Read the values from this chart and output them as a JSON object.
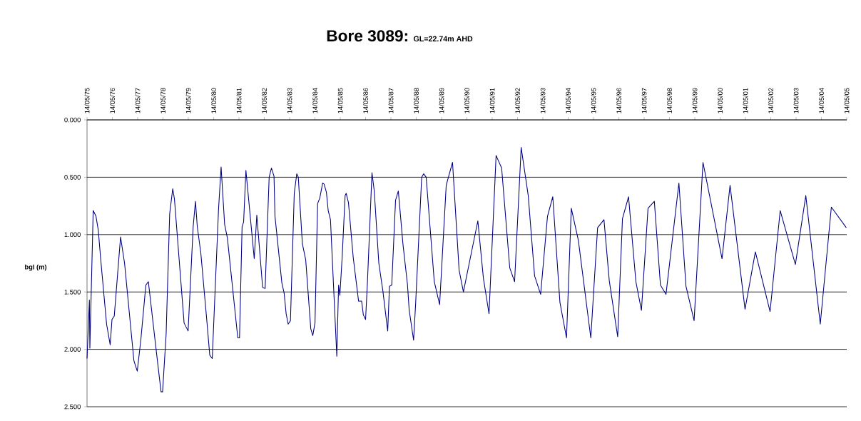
{
  "chart_data": {
    "type": "line",
    "title": "Bore 3089:",
    "subtitle": "GL=22.74m AHD",
    "ylabel": "bgl (m)",
    "x": [
      "1975-05-14",
      "1975-06-17",
      "1975-06-24",
      "1975-08-11",
      "1975-09-20",
      "1975-10-23",
      "1975-11-28",
      "1976-02-20",
      "1976-04-12",
      "1976-05-08",
      "1976-06-10",
      "1976-09-09",
      "1976-11-06",
      "1977-03-21",
      "1977-05-08",
      "1977-06-28",
      "1977-09-09",
      "1977-10-15",
      "1978-02-13",
      "1978-04-16",
      "1978-05-08",
      "1978-06-28",
      "1978-08-18",
      "1978-10-01",
      "1978-10-26",
      "1979-03-14",
      "1979-05-11",
      "1979-07-23",
      "1979-08-25",
      "1979-09-20",
      "1979-11-10",
      "1980-02-02",
      "1980-03-18",
      "1980-04-23",
      "1980-07-23",
      "1980-08-29",
      "1980-10-19",
      "1980-11-28",
      "1981-04-27",
      "1981-05-22",
      "1981-06-28",
      "1981-07-20",
      "1981-08-22",
      "1981-12-20",
      "1982-01-26",
      "1982-04-20",
      "1982-05-26",
      "1982-07-23",
      "1982-08-25",
      "1982-10-01",
      "1982-10-15",
      "1983-01-22",
      "1983-02-24",
      "1983-03-25",
      "1983-04-23",
      "1983-05-26",
      "1983-07-20",
      "1983-08-25",
      "1983-09-16",
      "1983-11-14",
      "1984-01-01",
      "1984-03-14",
      "1984-04-12",
      "1984-05-14",
      "1984-06-21",
      "1984-07-23",
      "1984-09-02",
      "1984-09-23",
      "1984-10-26",
      "1984-11-21",
      "1984-12-24",
      "1985-03-25",
      "1985-04-20",
      "1985-05-08",
      "1985-06-10",
      "1985-07-23",
      "1985-08-07",
      "1985-09-09",
      "1985-11-17",
      "1986-02-02",
      "1986-03-18",
      "1986-04-12",
      "1986-05-14",
      "1986-06-10",
      "1986-08-14",
      "1986-09-16",
      "1986-11-21",
      "1987-01-18",
      "1987-03-29",
      "1987-04-23",
      "1987-05-26",
      "1987-07-20",
      "1987-08-29",
      "1987-09-27",
      "1987-11-03",
      "1988-01-07",
      "1988-02-02",
      "1988-04-05",
      "1988-05-04",
      "1988-07-31",
      "1988-08-29",
      "1988-10-04",
      "1989-01-29",
      "1989-04-16",
      "1989-07-20",
      "1989-10-19",
      "1990-01-22",
      "1990-03-25",
      "1990-10-19",
      "1991-01-07",
      "1991-03-29",
      "1991-07-09",
      "1991-09-27",
      "1992-01-22",
      "1992-04-01",
      "1992-07-05",
      "1992-10-15",
      "1993-01-15",
      "1993-04-12",
      "1993-07-20",
      "1993-10-04",
      "1994-01-15",
      "1994-04-20",
      "1994-06-28",
      "1994-10-08",
      "1995-04-05",
      "1995-07-12",
      "1995-10-12",
      "1995-12-27",
      "1996-04-27",
      "1996-07-05",
      "1996-10-01",
      "1997-01-15",
      "1997-04-05",
      "1997-07-09",
      "1997-10-08",
      "1998-01-04",
      "1998-03-25",
      "1998-09-27",
      "1999-01-07",
      "1999-05-04",
      "1999-09-09",
      "2000-06-10",
      "2000-10-04",
      "2001-05-08",
      "2001-10-04",
      "2002-05-04",
      "2002-09-27",
      "2003-05-04",
      "2003-10-01",
      "2004-04-27",
      "2004-10-04",
      "2005-05-08"
    ],
    "series": [
      {
        "color": "#000080",
        "values": [
          2.08,
          1.57,
          1.99,
          0.79,
          0.84,
          0.96,
          1.22,
          1.78,
          1.96,
          1.74,
          1.71,
          1.02,
          1.25,
          2.1,
          2.19,
          1.92,
          1.44,
          1.41,
          2.05,
          2.37,
          2.37,
          1.87,
          0.82,
          0.6,
          0.69,
          1.77,
          1.84,
          0.93,
          0.71,
          0.93,
          1.16,
          1.73,
          2.05,
          2.08,
          0.78,
          0.41,
          0.91,
          1.03,
          1.9,
          1.9,
          0.93,
          0.89,
          0.44,
          1.21,
          0.83,
          1.46,
          1.47,
          0.5,
          0.42,
          0.49,
          0.84,
          1.42,
          1.51,
          1.69,
          1.78,
          1.75,
          0.64,
          0.47,
          0.5,
          1.08,
          1.22,
          1.82,
          1.88,
          1.77,
          0.73,
          0.68,
          0.55,
          0.56,
          0.63,
          0.79,
          0.87,
          2.06,
          1.44,
          1.53,
          1.2,
          0.66,
          0.64,
          0.72,
          1.2,
          1.58,
          1.58,
          1.7,
          1.74,
          1.41,
          0.46,
          0.62,
          1.25,
          1.49,
          1.84,
          1.45,
          1.44,
          0.7,
          0.62,
          0.82,
          1.08,
          1.43,
          1.66,
          1.92,
          1.61,
          0.5,
          0.47,
          0.5,
          1.41,
          1.61,
          0.57,
          0.37,
          1.31,
          1.5,
          0.88,
          1.38,
          1.69,
          0.31,
          0.42,
          1.29,
          1.41,
          0.24,
          0.66,
          1.36,
          1.52,
          0.84,
          0.67,
          1.59,
          1.9,
          0.77,
          1.05,
          1.9,
          0.94,
          0.87,
          1.4,
          1.89,
          0.86,
          0.67,
          1.41,
          1.66,
          0.77,
          0.71,
          1.44,
          1.52,
          0.55,
          1.45,
          1.75,
          0.37,
          1.21,
          0.57,
          1.65,
          1.15,
          1.67,
          0.79,
          1.26,
          0.66,
          1.78,
          0.76,
          0.94
        ]
      }
    ],
    "xlim": [
      "1975-05-14",
      "2005-05-14"
    ],
    "xticks": [
      {
        "value": "1975-05-14",
        "label": "14/05/75"
      },
      {
        "value": "1976-05-14",
        "label": "14/05/76"
      },
      {
        "value": "1977-05-14",
        "label": "14/05/77"
      },
      {
        "value": "1978-05-14",
        "label": "14/05/78"
      },
      {
        "value": "1979-05-14",
        "label": "14/05/79"
      },
      {
        "value": "1980-05-14",
        "label": "14/05/80"
      },
      {
        "value": "1981-05-14",
        "label": "14/05/81"
      },
      {
        "value": "1982-05-14",
        "label": "14/05/82"
      },
      {
        "value": "1983-05-14",
        "label": "14/05/83"
      },
      {
        "value": "1984-05-14",
        "label": "14/05/84"
      },
      {
        "value": "1985-05-14",
        "label": "14/05/85"
      },
      {
        "value": "1986-05-14",
        "label": "14/05/86"
      },
      {
        "value": "1987-05-14",
        "label": "14/05/87"
      },
      {
        "value": "1988-05-14",
        "label": "14/05/88"
      },
      {
        "value": "1989-05-14",
        "label": "14/05/89"
      },
      {
        "value": "1990-05-14",
        "label": "14/05/90"
      },
      {
        "value": "1991-05-14",
        "label": "14/05/91"
      },
      {
        "value": "1992-05-14",
        "label": "14/05/92"
      },
      {
        "value": "1993-05-14",
        "label": "14/05/93"
      },
      {
        "value": "1994-05-14",
        "label": "14/05/94"
      },
      {
        "value": "1995-05-14",
        "label": "14/05/95"
      },
      {
        "value": "1996-05-14",
        "label": "14/05/96"
      },
      {
        "value": "1997-05-14",
        "label": "14/05/97"
      },
      {
        "value": "1998-05-14",
        "label": "14/05/98"
      },
      {
        "value": "1999-05-14",
        "label": "14/05/99"
      },
      {
        "value": "2000-05-14",
        "label": "14/05/00"
      },
      {
        "value": "2001-05-14",
        "label": "14/05/01"
      },
      {
        "value": "2002-05-14",
        "label": "14/05/02"
      },
      {
        "value": "2003-05-14",
        "label": "14/05/03"
      },
      {
        "value": "2004-05-14",
        "label": "14/05/04"
      },
      {
        "value": "2005-05-14",
        "label": "14/05/05"
      }
    ],
    "ylim": [
      2.5,
      0
    ],
    "yticks": [
      {
        "value": 0,
        "label": "0.000"
      },
      {
        "value": 0.5,
        "label": "0.500"
      },
      {
        "value": 1,
        "label": "1.000"
      },
      {
        "value": 1.5,
        "label": "1.500"
      },
      {
        "value": 2,
        "label": "2.000"
      },
      {
        "value": 2.5,
        "label": "2.500"
      }
    ],
    "grid": "y",
    "marker": "none",
    "line_style": "solid"
  }
}
